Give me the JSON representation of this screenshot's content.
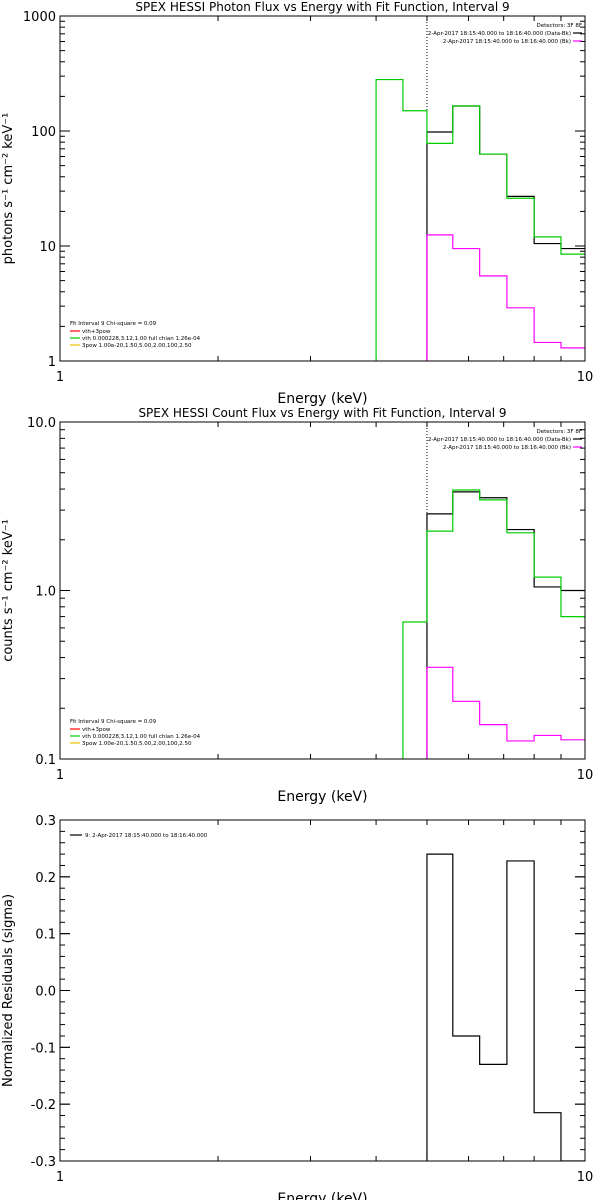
{
  "chart_data": [
    {
      "type": "line",
      "step": true,
      "title": "SPEX HESSI Photon Flux vs Energy with Fit Function, Interval 9",
      "xlabel": "Energy (keV)",
      "ylabel": "photons s⁻¹ cm⁻² keV⁻¹",
      "xscale": "log",
      "yscale": "log",
      "xlim": [
        1,
        10
      ],
      "ylim": [
        1,
        1000
      ],
      "xticks": [
        {
          "v": 1,
          "label": "1"
        },
        {
          "v": 10,
          "label": "10"
        }
      ],
      "yticks": [
        {
          "v": 1,
          "label": "1"
        },
        {
          "v": 10,
          "label": "10"
        },
        {
          "v": 100,
          "label": "100"
        },
        {
          "v": 1000,
          "label": "1000"
        }
      ],
      "vline": 5.0,
      "legend_tr": {
        "header": "Detectors: 3F 8F",
        "lines": [
          {
            "text": "2-Apr-2017 18:15:40.000 to 18:16:40.000 (Data-Bk)",
            "color": "#000000"
          },
          {
            "text": "2-Apr-2017 18:15:40.000 to 18:16:40.000 (Bk)",
            "color": "#ff00ff"
          }
        ]
      },
      "legend_bl": {
        "header": "Fit Interval 9   Chi-square = 0.09",
        "lines": [
          {
            "text": "vth+3pow",
            "color": "#ff0000"
          },
          {
            "text": "vth 0.000228,3.12,1.00   full chian 1.26e-04",
            "color": "#00cc00"
          },
          {
            "text": "3pow 1.00e-20,1.50,5.00,2.00,100,2.50",
            "color": "#e8c000"
          }
        ]
      },
      "series": [
        {
          "color": "#000000",
          "edges": [
            5.0,
            5.6,
            6.3,
            7.1,
            8.0,
            9.0,
            10.0
          ],
          "values": [
            98,
            165,
            63,
            27,
            10.5,
            9.5
          ]
        },
        {
          "color": "#ff00ff",
          "edges": [
            5.0,
            5.6,
            6.3,
            7.1,
            8.0,
            9.0,
            10.0
          ],
          "values": [
            12.5,
            9.5,
            5.5,
            2.9,
            1.45,
            1.3
          ]
        },
        {
          "color": "#00cc00",
          "edges": [
            3.5,
            4.0,
            4.5,
            5.0,
            5.6,
            6.3,
            7.1,
            8.0,
            9.0,
            10.0
          ],
          "values": [
            null,
            280,
            150,
            78,
            165,
            63,
            26,
            12,
            8.5
          ]
        }
      ]
    },
    {
      "type": "line",
      "step": true,
      "title": "SPEX HESSI Count Flux vs Energy with Fit Function, Interval 9",
      "xlabel": "Energy (keV)",
      "ylabel": "counts s⁻¹ cm⁻² keV⁻¹",
      "xscale": "log",
      "yscale": "log",
      "xlim": [
        1,
        10
      ],
      "ylim": [
        0.1,
        10
      ],
      "xticks": [
        {
          "v": 1,
          "label": "1"
        },
        {
          "v": 10,
          "label": "10"
        }
      ],
      "yticks": [
        {
          "v": 0.1,
          "label": "0.1"
        },
        {
          "v": 1,
          "label": "1.0"
        },
        {
          "v": 10,
          "label": "10.0"
        }
      ],
      "vline": 5.0,
      "legend_tr": {
        "header": "Detectors: 3F 8F",
        "lines": [
          {
            "text": "2-Apr-2017 18:15:40.000 to 18:16:40.000 (Data-Bk)",
            "color": "#000000"
          },
          {
            "text": "2-Apr-2017 18:15:40.000 to 18:16:40.000 (Bk)",
            "color": "#ff00ff"
          }
        ]
      },
      "legend_bl": {
        "header": "Fit Interval 9   Chi-square = 0.09",
        "lines": [
          {
            "text": "vth+3pow",
            "color": "#ff0000"
          },
          {
            "text": "vth 0.000228,3.12,1.00   full chian 1.26e-04",
            "color": "#00cc00"
          },
          {
            "text": "3pow 1.00e-20,1.50,5.00,2.00,100,2.50",
            "color": "#e8c000"
          }
        ]
      },
      "series": [
        {
          "color": "#000000",
          "edges": [
            5.0,
            5.6,
            6.3,
            7.1,
            8.0,
            9.0,
            10.0
          ],
          "values": [
            2.85,
            3.85,
            3.55,
            2.3,
            1.05,
            1.0
          ]
        },
        {
          "color": "#ff00ff",
          "edges": [
            5.0,
            5.6,
            6.3,
            7.1,
            8.0,
            9.0,
            10.0
          ],
          "values": [
            0.35,
            0.22,
            0.16,
            0.128,
            0.138,
            0.13
          ]
        },
        {
          "color": "#00cc00",
          "edges": [
            4.5,
            5.0,
            5.6,
            6.3,
            7.1,
            8.0,
            9.0,
            10.0
          ],
          "values": [
            0.65,
            2.25,
            3.95,
            3.45,
            2.2,
            1.2,
            0.7
          ]
        }
      ]
    },
    {
      "type": "line",
      "step": true,
      "title": "",
      "xlabel": "Energy (keV)",
      "ylabel": "Normalized Residuals (sigma)",
      "xscale": "log",
      "yscale": "linear",
      "xlim": [
        1,
        10
      ],
      "ylim": [
        -0.3,
        0.3
      ],
      "xticks": [
        {
          "v": 1,
          "label": "1"
        },
        {
          "v": 10,
          "label": "10"
        }
      ],
      "yticks": [
        {
          "v": -0.3,
          "label": "-0.3"
        },
        {
          "v": -0.2,
          "label": "-0.2"
        },
        {
          "v": -0.1,
          "label": "-0.1"
        },
        {
          "v": 0.0,
          "label": "0.0"
        },
        {
          "v": 0.1,
          "label": "0.1"
        },
        {
          "v": 0.2,
          "label": "0.2"
        },
        {
          "v": 0.3,
          "label": "0.3"
        }
      ],
      "legend_tl": {
        "text": "9:  2-Apr-2017 18:15:40.000 to 18:16:40.000",
        "color": "#000000"
      },
      "series": [
        {
          "color": "#000000",
          "edges": [
            5.0,
            5.6,
            6.3,
            7.1,
            8.0,
            9.0,
            10.0
          ],
          "values": [
            0.24,
            -0.08,
            -0.13,
            0.228,
            -0.215,
            -0.3
          ]
        }
      ]
    }
  ]
}
